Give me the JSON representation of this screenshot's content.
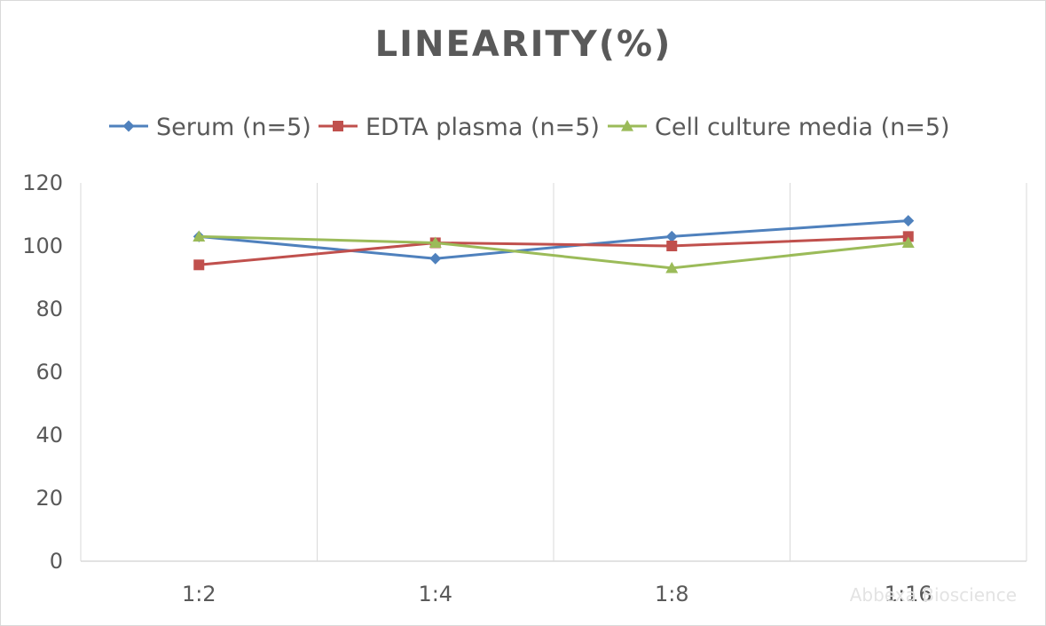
{
  "chart_data": {
    "type": "line",
    "title": "LINEARITY(%)",
    "xlabel": "",
    "ylabel": "",
    "categories": [
      "1:2",
      "1:4",
      "1:8",
      "1:16"
    ],
    "ylim": [
      0,
      120
    ],
    "yticks": [
      0,
      20,
      40,
      60,
      80,
      100,
      120
    ],
    "grid": "vertical",
    "legend_position": "top",
    "series": [
      {
        "name": "Serum (n=5)",
        "values": [
          103,
          96,
          103,
          108
        ],
        "color": "#4f81bd",
        "marker": "diamond"
      },
      {
        "name": "EDTA plasma (n=5)",
        "values": [
          94,
          101,
          100,
          103
        ],
        "color": "#c0504d",
        "marker": "square"
      },
      {
        "name": "Cell culture media (n=5)",
        "values": [
          103,
          101,
          93,
          101
        ],
        "color": "#9bbb59",
        "marker": "triangle"
      }
    ]
  },
  "watermark": "Abbexa Bioscience"
}
